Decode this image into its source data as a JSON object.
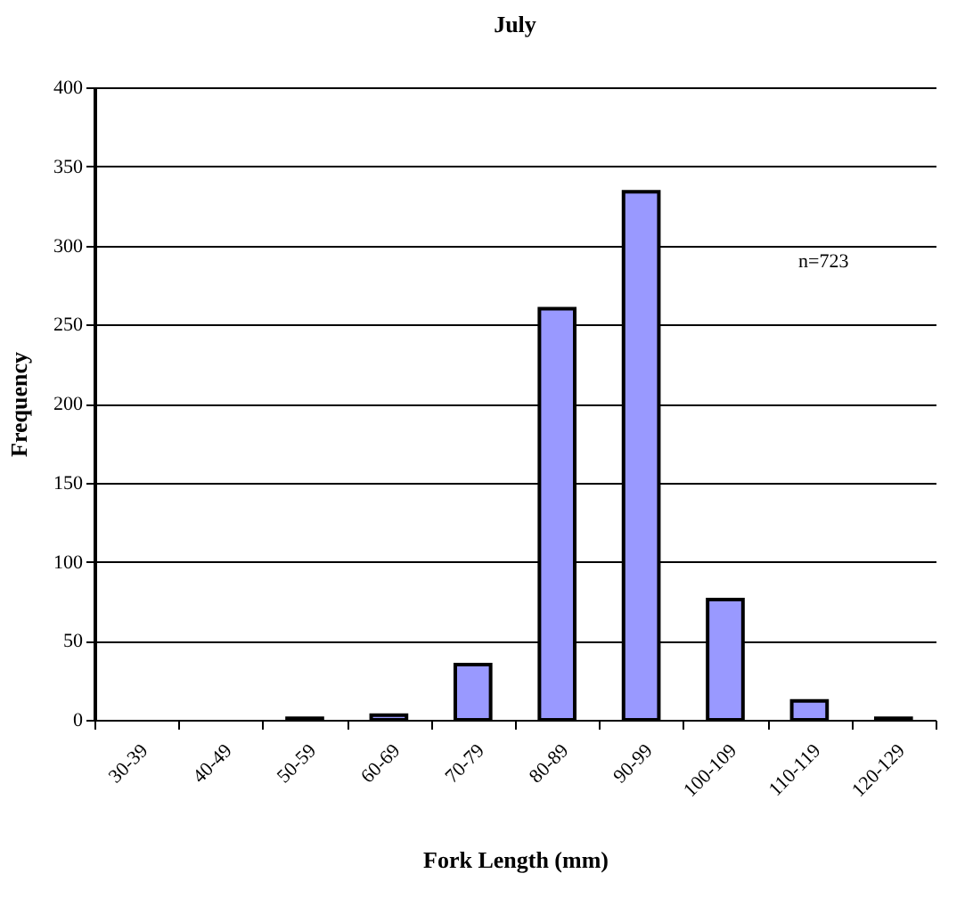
{
  "chart_data": {
    "type": "bar",
    "title": "July",
    "xlabel": "Fork Length (mm)",
    "ylabel": "Frequency",
    "categories": [
      "30-39",
      "40-49",
      "50-59",
      "60-69",
      "70-79",
      "80-89",
      "90-99",
      "100-109",
      "110-119",
      "120-129"
    ],
    "values": [
      0,
      0,
      1,
      3,
      35,
      260,
      334,
      76,
      12,
      1
    ],
    "color": "#9999ff",
    "ylim": [
      0,
      400
    ],
    "yticks": [
      0,
      50,
      100,
      150,
      200,
      250,
      300,
      350,
      400
    ],
    "grid": "y",
    "annotations": [
      "n=723"
    ]
  }
}
